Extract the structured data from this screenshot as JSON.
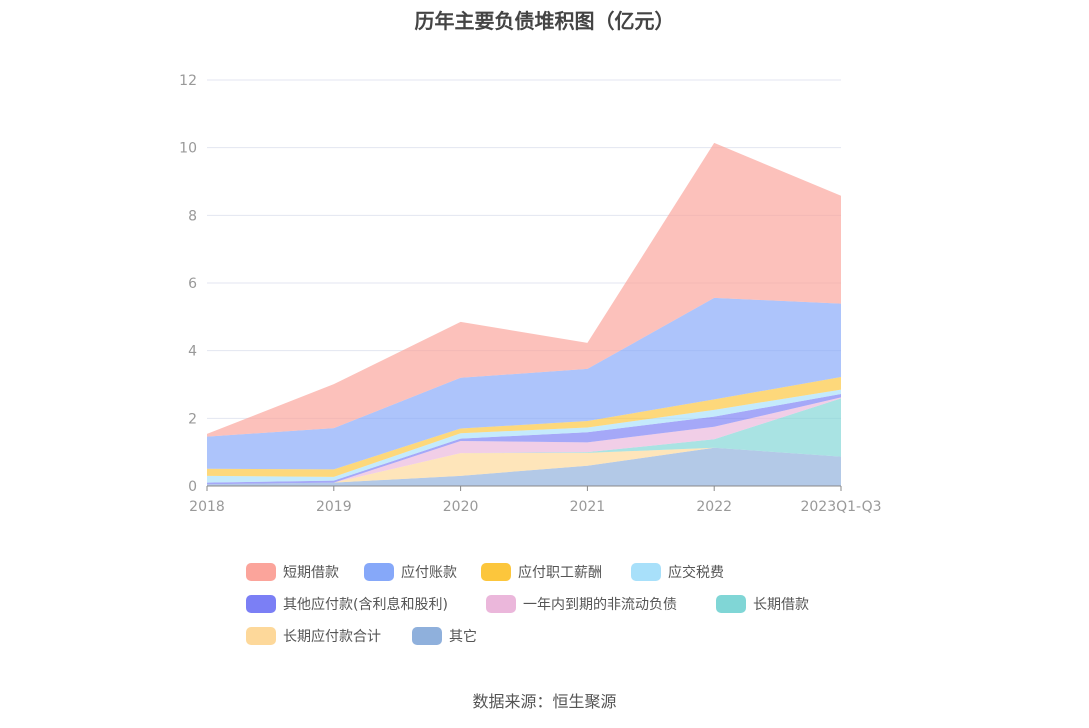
{
  "chart_data": {
    "type": "area",
    "stacked": true,
    "title": "历年主要负债堆积图（亿元）",
    "xlabel": "",
    "ylabel": "",
    "ylim": [
      0,
      12
    ],
    "yticks": [
      "0",
      "2",
      "4",
      "6",
      "8",
      "10",
      "12"
    ],
    "categories": [
      "2018",
      "2019",
      "2020",
      "2021",
      "2022",
      "2023Q1-Q3"
    ],
    "grid": true,
    "legend_placement": "bottom",
    "series": [
      {
        "name": "其它",
        "color": "#8fb0dc",
        "values": [
          0.05,
          0.1,
          0.3,
          0.6,
          1.13,
          0.87
        ]
      },
      {
        "name": "长期应付款合计",
        "color": "#fdd89a",
        "values": [
          0,
          0,
          0.67,
          0.38,
          0,
          0
        ]
      },
      {
        "name": "长期借款",
        "color": "#80d6d6",
        "values": [
          0,
          0,
          0,
          0.02,
          0.25,
          1.72
        ]
      },
      {
        "name": "一年内到期的非流动负债",
        "color": "#ebb7db",
        "values": [
          0,
          0,
          0.36,
          0.29,
          0.37,
          0.03
        ]
      },
      {
        "name": "其他应付款(含利息和股利)",
        "color": "#7b7ff5",
        "values": [
          0.05,
          0.06,
          0.07,
          0.3,
          0.3,
          0.1
        ]
      },
      {
        "name": "应交税费",
        "color": "#a8e0fa",
        "values": [
          0.2,
          0.11,
          0.16,
          0.14,
          0.2,
          0.13
        ]
      },
      {
        "name": "应付职工薪酬",
        "color": "#fcc63c",
        "values": [
          0.21,
          0.22,
          0.14,
          0.19,
          0.31,
          0.37
        ]
      },
      {
        "name": "应付账款",
        "color": "#86a8f9",
        "values": [
          0.95,
          1.22,
          1.5,
          1.54,
          3.0,
          2.17
        ]
      },
      {
        "name": "短期借款",
        "color": "#fba49b",
        "values": [
          0.08,
          1.3,
          1.65,
          0.77,
          4.58,
          3.19
        ]
      }
    ],
    "legend_order": [
      "短期借款",
      "应付账款",
      "应付职工薪酬",
      "应交税费",
      "其他应付款(含利息和股利)",
      "一年内到期的非流动负债",
      "长期借款",
      "长期应付款合计",
      "其它"
    ]
  },
  "source": "数据来源：恒生聚源"
}
